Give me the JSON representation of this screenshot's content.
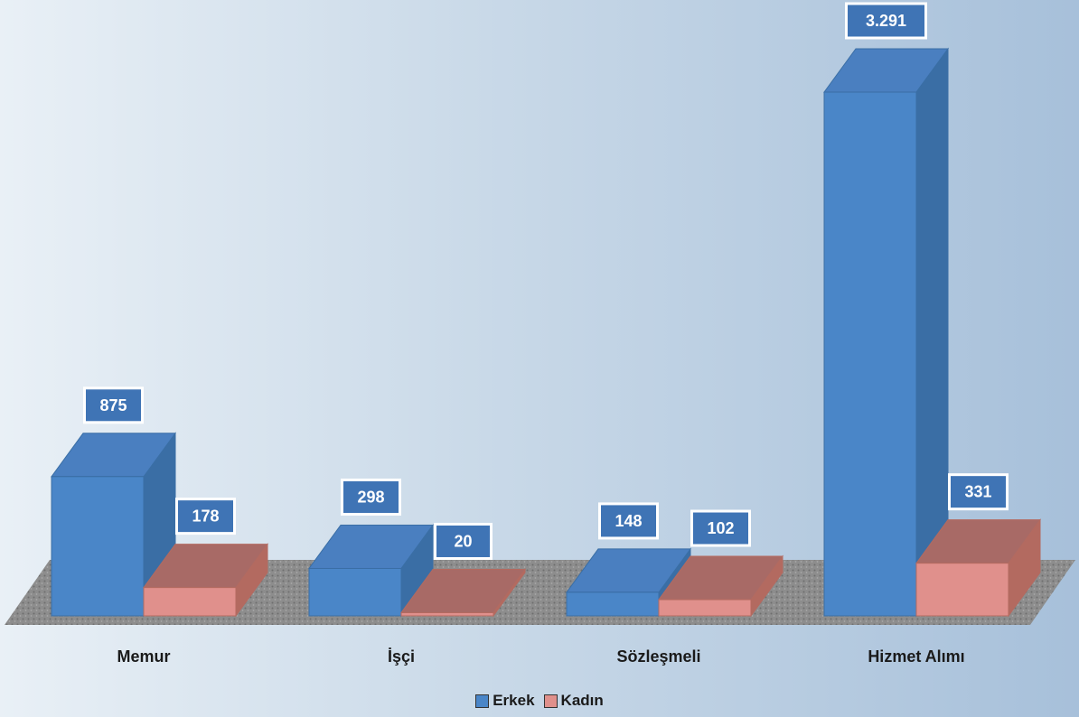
{
  "chart_data": {
    "type": "bar",
    "categories": [
      "Memur",
      "İşçi",
      "Sözleşmeli",
      "Hizmet Alımı"
    ],
    "series": [
      {
        "name": "Erkek",
        "values": [
          875,
          298,
          148,
          3291
        ],
        "labels": [
          "875",
          "298",
          "148",
          "3.291"
        ],
        "color": "#4a86c8"
      },
      {
        "name": "Kadın",
        "values": [
          178,
          20,
          102,
          331
        ],
        "labels": [
          "178",
          "20",
          "102",
          "331"
        ],
        "color": "#e0908c"
      }
    ],
    "ylim": [
      0,
      3291
    ],
    "legend_position": "bottom",
    "grid": false,
    "style": "3d-column"
  }
}
